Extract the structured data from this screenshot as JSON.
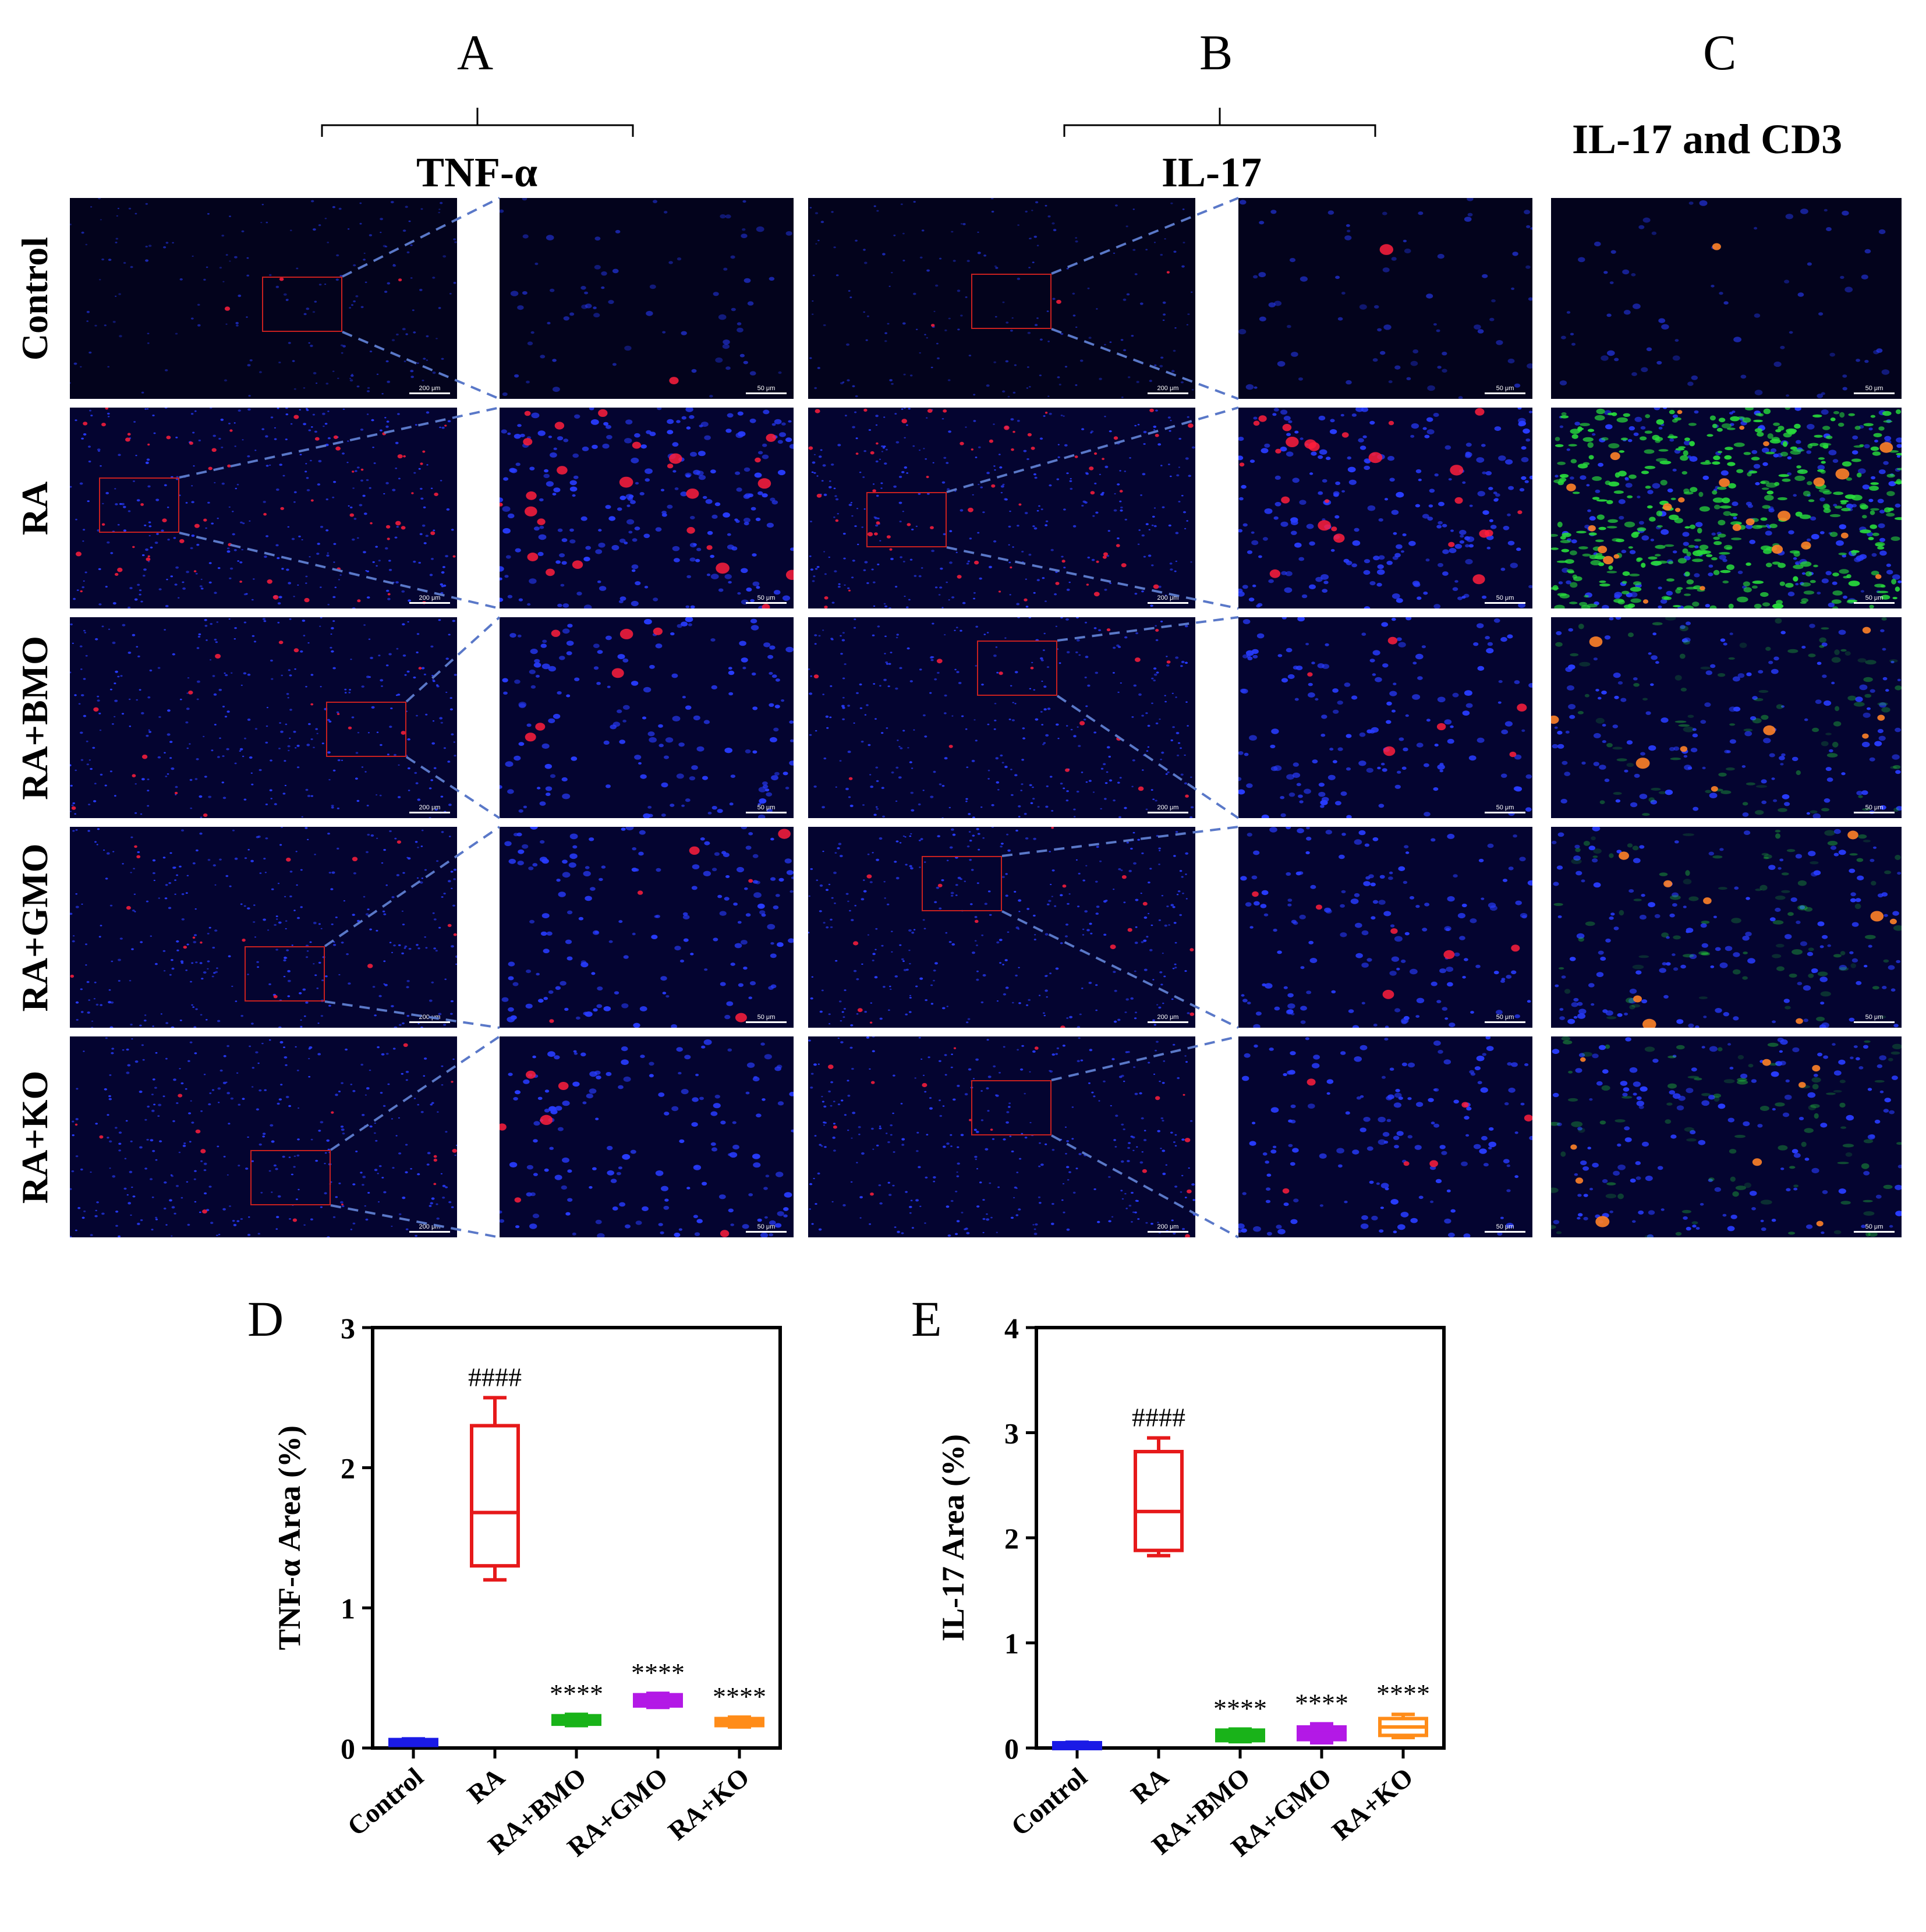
{
  "panels": {
    "A": {
      "letter": "A",
      "title": "TNF-α"
    },
    "B": {
      "letter": "B",
      "title": "IL-17"
    },
    "C": {
      "letter": "C",
      "title": "IL-17 and CD3"
    },
    "D": {
      "letter": "D"
    },
    "E": {
      "letter": "E"
    }
  },
  "rows": [
    "Control",
    "RA",
    "RA+BMO",
    "RA+GMO",
    "RA+KO"
  ],
  "scale_labels": {
    "low": "200 μm",
    "high": "50 μm"
  },
  "colors": {
    "Control": "#1a1ae6",
    "RA": "#e6191a",
    "RA+BMO": "#19b319",
    "RA+GMO": "#b319e6",
    "RA+KO": "#ff8c19"
  },
  "chart_data": [
    {
      "type": "box",
      "ylabel": "TNF-α Area (%)",
      "ylim": [
        0,
        3
      ],
      "yticks": [
        0,
        1,
        2,
        3
      ],
      "categories": [
        "Control",
        "RA",
        "RA+BMO",
        "RA+GMO",
        "RA+KO"
      ],
      "boxes": [
        {
          "min": 0.04,
          "q1": 0.045,
          "median": 0.05,
          "q3": 0.06,
          "max": 0.065
        },
        {
          "min": 1.2,
          "q1": 1.3,
          "median": 1.68,
          "q3": 2.3,
          "max": 2.5
        },
        {
          "min": 0.16,
          "q1": 0.17,
          "median": 0.2,
          "q3": 0.23,
          "max": 0.24
        },
        {
          "min": 0.29,
          "q1": 0.3,
          "median": 0.34,
          "q3": 0.38,
          "max": 0.39
        },
        {
          "min": 0.15,
          "q1": 0.16,
          "median": 0.18,
          "q3": 0.21,
          "max": 0.22
        }
      ],
      "annotations": [
        "",
        "####",
        "****",
        "****",
        "****"
      ]
    },
    {
      "type": "box",
      "ylabel": "IL-17 Area (%)",
      "ylim": [
        0,
        4
      ],
      "yticks": [
        0,
        1,
        2,
        3,
        4
      ],
      "categories": [
        "Control",
        "RA",
        "RA+BMO",
        "RA+GMO",
        "RA+KO"
      ],
      "boxes": [
        {
          "min": 0.03,
          "q1": 0.035,
          "median": 0.04,
          "q3": 0.05,
          "max": 0.055
        },
        {
          "min": 1.83,
          "q1": 1.88,
          "median": 2.25,
          "q3": 2.82,
          "max": 2.95
        },
        {
          "min": 0.06,
          "q1": 0.07,
          "median": 0.12,
          "q3": 0.17,
          "max": 0.18
        },
        {
          "min": 0.05,
          "q1": 0.08,
          "median": 0.14,
          "q3": 0.2,
          "max": 0.23
        },
        {
          "min": 0.1,
          "q1": 0.12,
          "median": 0.2,
          "q3": 0.28,
          "max": 0.32
        }
      ],
      "annotations": [
        "",
        "####",
        "****",
        "****",
        "****"
      ]
    }
  ]
}
